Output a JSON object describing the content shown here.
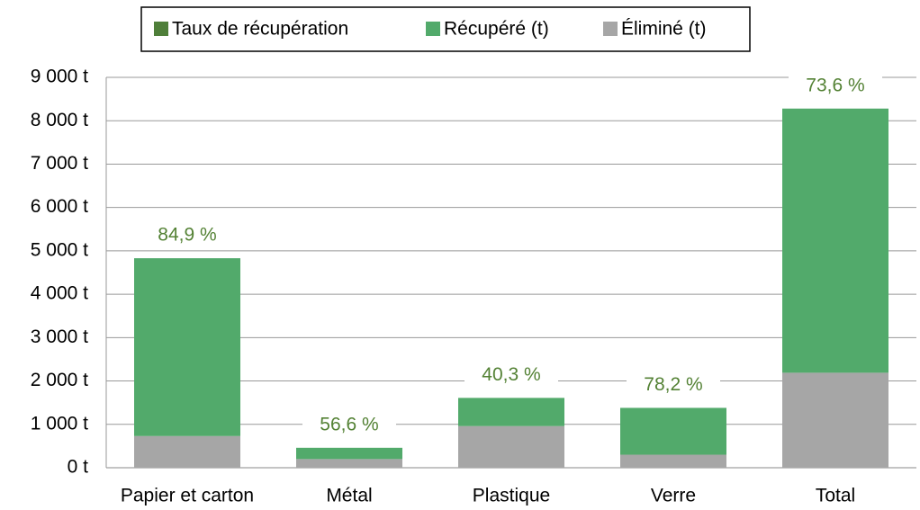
{
  "chart_data": {
    "type": "bar",
    "stacked": true,
    "categories": [
      "Papier et carton",
      "Métal",
      "Plastique",
      "Verre",
      "Total"
    ],
    "series": [
      {
        "name": "Taux de récupération",
        "color": "#4f7f3a",
        "label_color": "#548235",
        "values": [
          84.9,
          56.6,
          40.3,
          78.2,
          73.6
        ],
        "value_labels": [
          "84,9 %",
          "56,6 %",
          "40,3 %",
          "78,2 %",
          "73,6 %"
        ]
      },
      {
        "name": "Récupéré (t)",
        "color": "#52aa6b",
        "values": [
          4100,
          260,
          650,
          1080,
          6090
        ]
      },
      {
        "name": "Éliminé (t)",
        "color": "#a6a6a6",
        "values": [
          730,
          200,
          960,
          300,
          2190
        ]
      }
    ],
    "ylim": [
      0,
      9000
    ],
    "yticks": [
      {
        "value": 0,
        "label": "0 t"
      },
      {
        "value": 1000,
        "label": "1 000 t"
      },
      {
        "value": 2000,
        "label": "2 000 t"
      },
      {
        "value": 3000,
        "label": "3 000 t"
      },
      {
        "value": 4000,
        "label": "4 000 t"
      },
      {
        "value": 5000,
        "label": "5 000 t"
      },
      {
        "value": 6000,
        "label": "6 000 t"
      },
      {
        "value": 7000,
        "label": "7 000 t"
      },
      {
        "value": 8000,
        "label": "8 000 t"
      },
      {
        "value": 9000,
        "label": "9 000 t"
      }
    ],
    "grid": true,
    "legend": "top"
  }
}
